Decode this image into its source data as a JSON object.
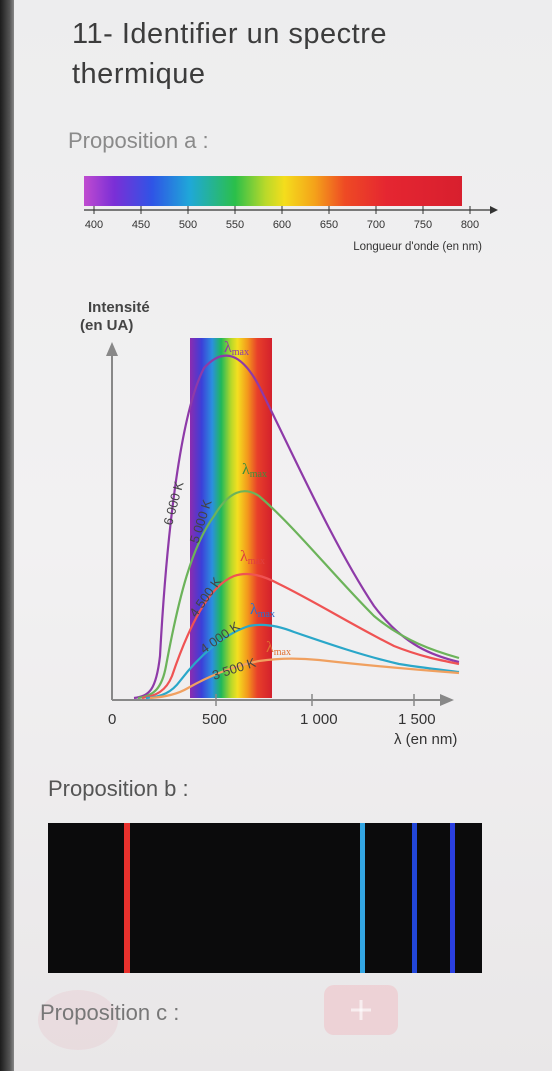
{
  "question": {
    "title": "11- Identifier un spectre thermique"
  },
  "proposition_a": {
    "label": "Proposition a :",
    "wavelength_ticks": [
      "400",
      "450",
      "500",
      "550",
      "600",
      "650",
      "700",
      "750",
      "800"
    ],
    "wavelength_axis_label": "Longueur d'onde (en nm)",
    "graph": {
      "y_label_line1": "Intensité",
      "y_label_line2": "(en UA)",
      "x_label": "λ (en nm)",
      "x_ticks": [
        "0",
        "500",
        "1 000",
        "1 500"
      ],
      "curves": [
        "6 000 K",
        "5 000 K",
        "4 500 K",
        "4 000 K",
        "3 500 K"
      ],
      "lambda_label": "λmax",
      "colors": [
        "#8e3aa8",
        "#6cb35a",
        "#ef5353",
        "#2aa7c9",
        "#f0a060"
      ]
    }
  },
  "proposition_b": {
    "label": "Proposition b :",
    "lines": [
      {
        "color": "#e8312d"
      },
      {
        "color": "#33a6e3"
      },
      {
        "color": "#2246d8"
      },
      {
        "color": "#2a3fe0"
      }
    ]
  },
  "proposition_c": {
    "label": "Proposition c :"
  }
}
